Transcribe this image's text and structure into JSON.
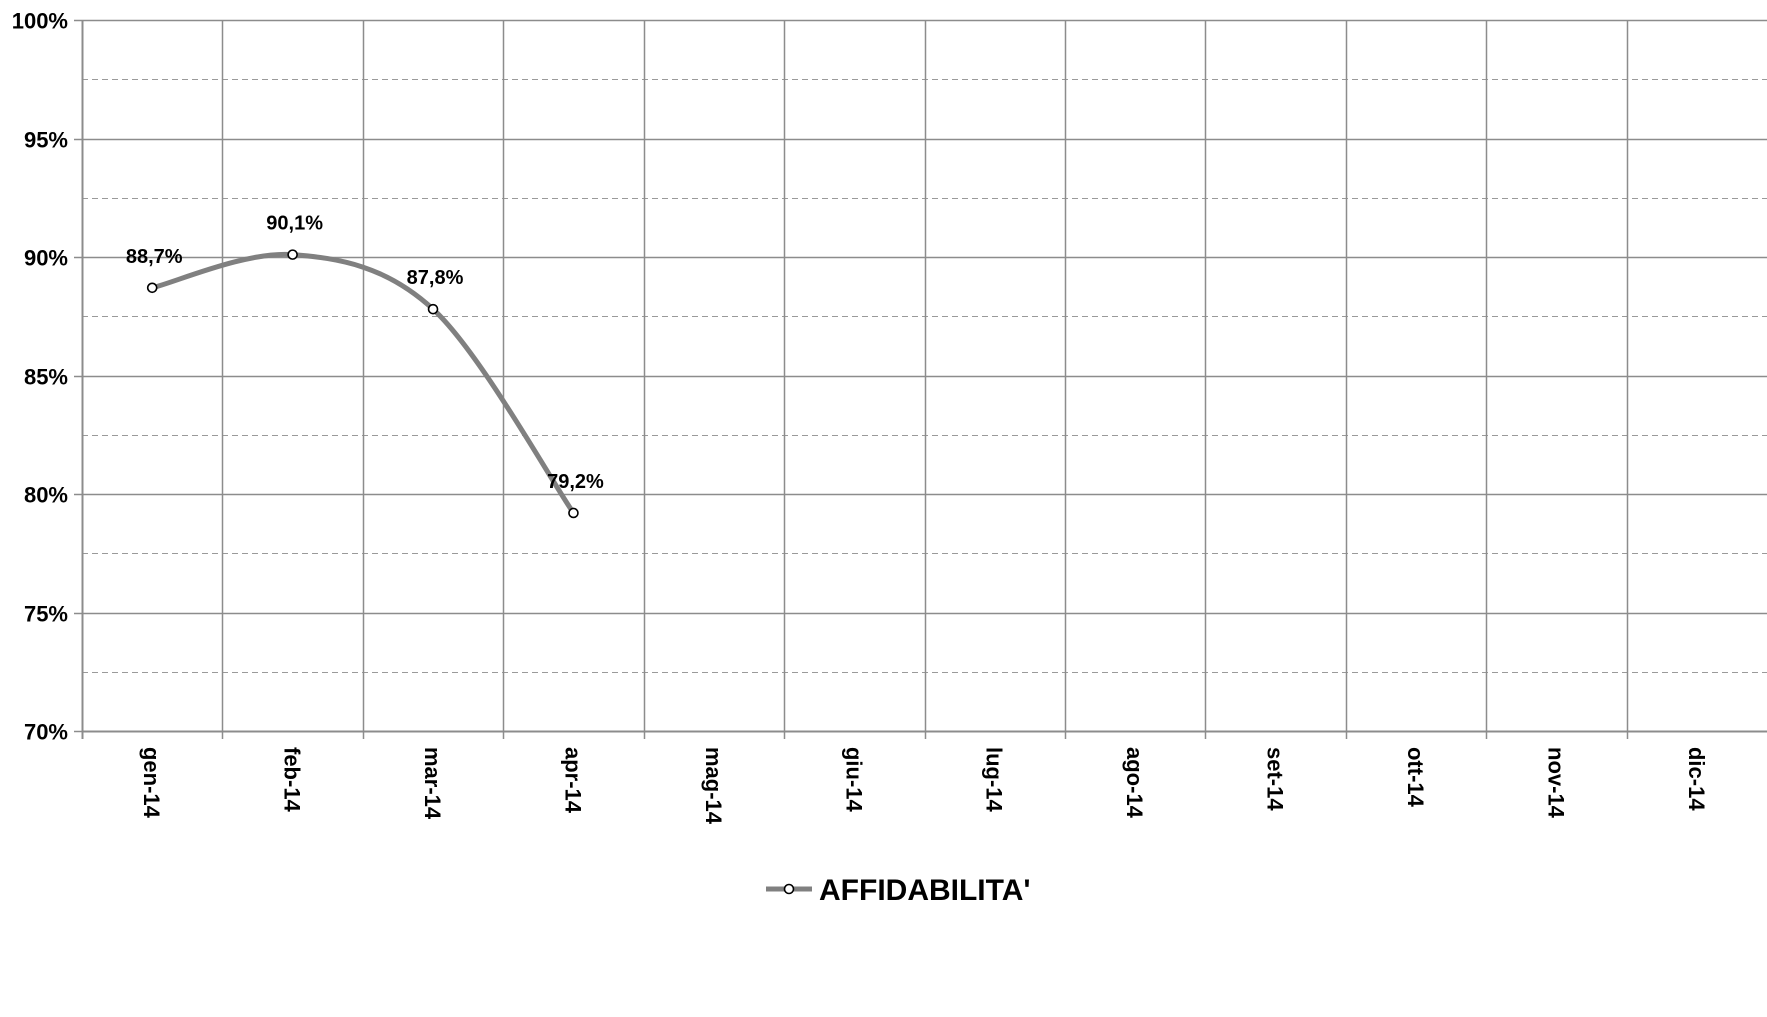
{
  "chart_data": {
    "type": "line",
    "title": "",
    "xlabel": "",
    "ylabel": "",
    "categories": [
      "gen-14",
      "feb-14",
      "mar-14",
      "apr-14",
      "mag-14",
      "giu-14",
      "lug-14",
      "ago-14",
      "set-14",
      "ott-14",
      "nov-14",
      "dic-14"
    ],
    "ylim": [
      70,
      100
    ],
    "y_major_ticks": [
      70,
      75,
      80,
      85,
      90,
      95,
      100
    ],
    "y_tick_labels": [
      "70%",
      "75%",
      "80%",
      "85%",
      "90%",
      "95%",
      "100%"
    ],
    "y_minor_gridlines": [
      72.5,
      77.5,
      82.5,
      87.5,
      92.5,
      97.5
    ],
    "grid": true,
    "smoothed": true,
    "legend_position": "bottom",
    "series": [
      {
        "name": "AFFIDABILITA'",
        "color": "#808080",
        "marker": "open-circle",
        "values": [
          88.7,
          90.1,
          87.8,
          79.2,
          null,
          null,
          null,
          null,
          null,
          null,
          null,
          null
        ],
        "data_labels": [
          "88,7%",
          "90,1%",
          "87,8%",
          "79,2%"
        ]
      }
    ]
  }
}
